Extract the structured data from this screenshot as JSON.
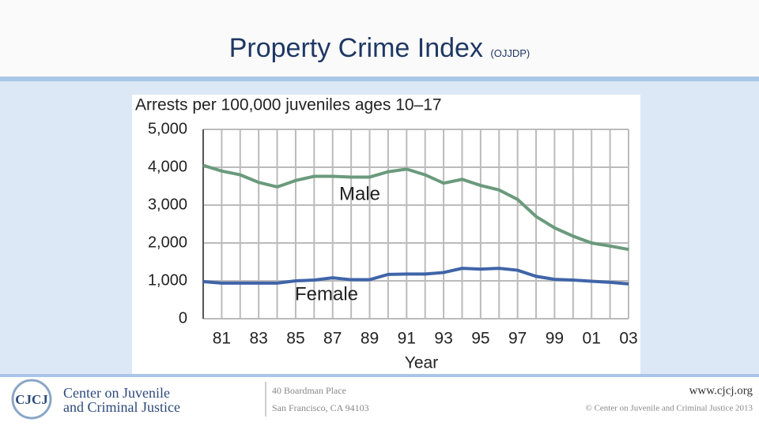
{
  "header": {
    "title": "Property Crime Index",
    "subtitle": "(OJJDP)"
  },
  "chart_data": {
    "type": "line",
    "title": "Arrests per 100,000 juveniles ages 10–17",
    "x_label": "Year",
    "x": [
      1980,
      1981,
      1982,
      1983,
      1984,
      1985,
      1986,
      1987,
      1988,
      1989,
      1990,
      1991,
      1992,
      1993,
      1994,
      1995,
      1996,
      1997,
      1998,
      1999,
      2000,
      2001,
      2002,
      2003
    ],
    "series": [
      {
        "name": "Male",
        "color": "#6a9a7c",
        "values": [
          4050,
          3900,
          3800,
          3600,
          3480,
          3650,
          3760,
          3760,
          3740,
          3740,
          3880,
          3950,
          3800,
          3580,
          3680,
          3520,
          3400,
          3150,
          2700,
          2400,
          2180,
          2000,
          1920,
          1830
        ]
      },
      {
        "name": "Female",
        "color": "#3f64a8",
        "values": [
          980,
          940,
          940,
          940,
          940,
          1000,
          1020,
          1080,
          1030,
          1030,
          1170,
          1180,
          1180,
          1220,
          1330,
          1310,
          1330,
          1280,
          1120,
          1040,
          1020,
          990,
          960,
          920
        ]
      }
    ],
    "xlim": [
      1980,
      2003
    ],
    "xticks": [
      {
        "value": 1981,
        "label": "81"
      },
      {
        "value": 1983,
        "label": "83"
      },
      {
        "value": 1985,
        "label": "85"
      },
      {
        "value": 1987,
        "label": "87"
      },
      {
        "value": 1989,
        "label": "89"
      },
      {
        "value": 1991,
        "label": "91"
      },
      {
        "value": 1993,
        "label": "93"
      },
      {
        "value": 1995,
        "label": "95"
      },
      {
        "value": 1997,
        "label": "97"
      },
      {
        "value": 1999,
        "label": "99"
      },
      {
        "value": 2001,
        "label": "01"
      },
      {
        "value": 2003,
        "label": "03"
      }
    ],
    "ylim": [
      0,
      5000
    ],
    "yticks": [
      0,
      {
        "value": 1000,
        "label": "1,000"
      },
      {
        "value": 2000,
        "label": "2,000"
      },
      {
        "value": 3000,
        "label": "3,000"
      },
      {
        "value": 4000,
        "label": "4,000"
      },
      {
        "value": 5000,
        "label": "5,000"
      }
    ],
    "grid": true
  },
  "footer": {
    "logo": "CJCJ",
    "org_line1": "Center on Juvenile",
    "org_line2": "and Criminal Justice",
    "address1": "40 Boardman Place",
    "address2": "San Francisco, CA 94103",
    "website": "www.cjcj.org",
    "copyright": "© Center on Juvenile and Criminal Justice 2013"
  }
}
